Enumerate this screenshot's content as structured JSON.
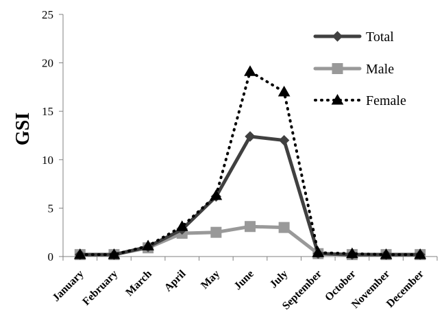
{
  "chart_data": {
    "type": "line",
    "categories": [
      "January",
      "February",
      "March",
      "April",
      "May",
      "June",
      "July",
      "September",
      "October",
      "November",
      "December"
    ],
    "ylabel": "GSI",
    "xlabel": "",
    "ylim": [
      0,
      25
    ],
    "yticks": [
      0,
      5,
      10,
      15,
      20,
      25
    ],
    "grid": false,
    "legend_position": "top-right",
    "series": [
      {
        "name": "Total",
        "values": [
          0.2,
          0.2,
          1.0,
          2.8,
          6.2,
          12.4,
          12.0,
          0.3,
          0.2,
          0.2,
          0.2
        ],
        "color": "#404040",
        "marker": "diamond",
        "line": "solid"
      },
      {
        "name": "Male",
        "values": [
          0.2,
          0.2,
          0.9,
          2.4,
          2.5,
          3.1,
          3.0,
          0.3,
          0.2,
          0.2,
          0.2
        ],
        "color": "#999999",
        "marker": "square",
        "line": "solid"
      },
      {
        "name": "Female",
        "values": [
          0.2,
          0.2,
          1.1,
          3.1,
          6.3,
          19.1,
          17.0,
          0.4,
          0.3,
          0.2,
          0.2
        ],
        "color": "#000000",
        "marker": "triangle",
        "line": "dotted"
      }
    ]
  }
}
